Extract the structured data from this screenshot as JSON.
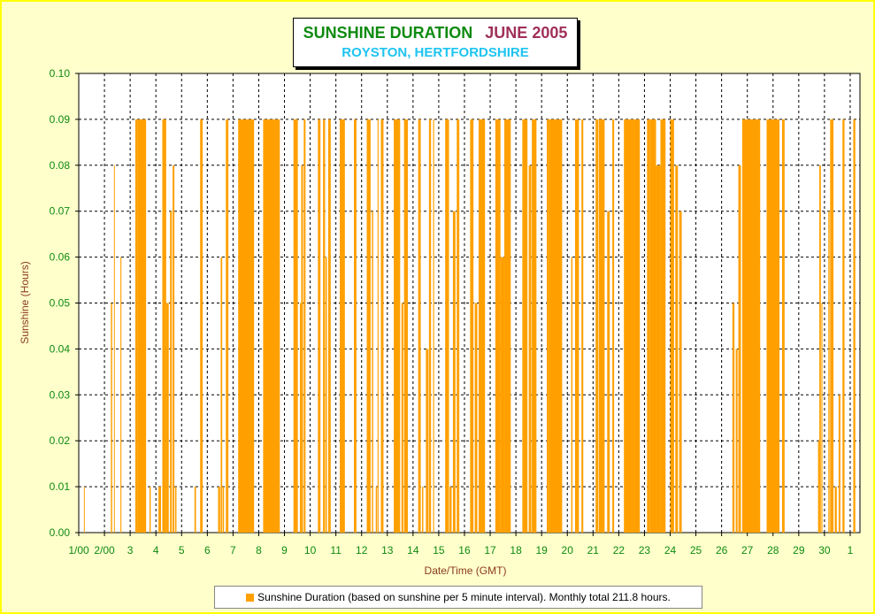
{
  "chart_data": {
    "type": "bar",
    "title": "SUNSHINE DURATION",
    "title_month": "JUNE 2005",
    "subtitle": "ROYSTON, HERTFORDSHIRE",
    "xlabel": "Date/Time (GMT)",
    "ylabel": "Sunshine (Hours)",
    "ylim": [
      0,
      0.1
    ],
    "y_ticks": [
      "0.00",
      "0.01",
      "0.02",
      "0.03",
      "0.04",
      "0.05",
      "0.06",
      "0.07",
      "0.08",
      "0.09",
      "0.10"
    ],
    "x_ticks": [
      "1/00",
      "2/00",
      "3",
      "4",
      "5",
      "6",
      "7",
      "8",
      "9",
      "10",
      "11",
      "12",
      "13",
      "14",
      "15",
      "16",
      "17",
      "18",
      "19",
      "20",
      "21",
      "22",
      "23",
      "24",
      "25",
      "26",
      "27",
      "28",
      "29",
      "30",
      "1"
    ],
    "grid": true,
    "bar_color": "#ffa000",
    "plot_background": "#ffffff",
    "frame_background": "#ffffcc",
    "legend_position": "bottom",
    "series": [
      {
        "name": "Sunshine Duration (based on sunshine per 5 minute interval). Monthly total 211.8 hours.",
        "segments_note": "",
        "segments": [
          {
            "start": 1.2,
            "end": 1.22,
            "value": 0.01
          },
          {
            "start": 2.25,
            "end": 2.3,
            "value": 0.05
          },
          {
            "start": 2.37,
            "end": 2.4,
            "value": 0.08
          },
          {
            "start": 2.62,
            "end": 2.66,
            "value": 0.06
          },
          {
            "start": 3.2,
            "end": 3.3,
            "value": 0.09
          },
          {
            "start": 3.3,
            "end": 3.62,
            "value": 0.09
          },
          {
            "start": 3.75,
            "end": 3.8,
            "value": 0.01
          },
          {
            "start": 4.1,
            "end": 4.2,
            "value": 0.01
          },
          {
            "start": 4.25,
            "end": 4.4,
            "value": 0.09
          },
          {
            "start": 4.4,
            "end": 4.5,
            "value": 0.05
          },
          {
            "start": 4.55,
            "end": 4.62,
            "value": 0.07
          },
          {
            "start": 4.65,
            "end": 4.72,
            "value": 0.08
          },
          {
            "start": 4.75,
            "end": 4.8,
            "value": 0.01
          },
          {
            "start": 5.5,
            "end": 5.56,
            "value": 0.01
          },
          {
            "start": 5.72,
            "end": 5.82,
            "value": 0.09
          },
          {
            "start": 6.42,
            "end": 6.5,
            "value": 0.01
          },
          {
            "start": 6.52,
            "end": 6.58,
            "value": 0.06
          },
          {
            "start": 6.6,
            "end": 6.65,
            "value": 0.01
          },
          {
            "start": 6.72,
            "end": 6.82,
            "value": 0.09
          },
          {
            "start": 7.2,
            "end": 7.82,
            "value": 0.09
          },
          {
            "start": 8.17,
            "end": 8.82,
            "value": 0.09
          },
          {
            "start": 9.35,
            "end": 9.52,
            "value": 0.09
          },
          {
            "start": 9.6,
            "end": 9.65,
            "value": 0.05
          },
          {
            "start": 9.65,
            "end": 9.72,
            "value": 0.08
          },
          {
            "start": 9.75,
            "end": 9.82,
            "value": 0.09
          },
          {
            "start": 10.3,
            "end": 10.4,
            "value": 0.09
          },
          {
            "start": 10.5,
            "end": 10.58,
            "value": 0.09
          },
          {
            "start": 10.6,
            "end": 10.65,
            "value": 0.06
          },
          {
            "start": 10.7,
            "end": 10.8,
            "value": 0.09
          },
          {
            "start": 11.15,
            "end": 11.35,
            "value": 0.09
          },
          {
            "start": 11.7,
            "end": 11.8,
            "value": 0.09
          },
          {
            "start": 12.2,
            "end": 12.35,
            "value": 0.09
          },
          {
            "start": 12.4,
            "end": 12.45,
            "value": 0.07
          },
          {
            "start": 12.55,
            "end": 12.6,
            "value": 0.01
          },
          {
            "start": 12.62,
            "end": 12.66,
            "value": 0.09
          },
          {
            "start": 12.75,
            "end": 12.85,
            "value": 0.09
          },
          {
            "start": 13.25,
            "end": 13.5,
            "value": 0.09
          },
          {
            "start": 13.55,
            "end": 13.62,
            "value": 0.05
          },
          {
            "start": 13.65,
            "end": 13.8,
            "value": 0.09
          },
          {
            "start": 14.2,
            "end": 14.3,
            "value": 0.09
          },
          {
            "start": 14.35,
            "end": 14.4,
            "value": 0.01
          },
          {
            "start": 14.5,
            "end": 14.6,
            "value": 0.04
          },
          {
            "start": 14.62,
            "end": 14.7,
            "value": 0.09
          },
          {
            "start": 14.78,
            "end": 14.82,
            "value": 0.09
          },
          {
            "start": 15.25,
            "end": 15.4,
            "value": 0.09
          },
          {
            "start": 15.42,
            "end": 15.5,
            "value": 0.01
          },
          {
            "start": 15.55,
            "end": 15.65,
            "value": 0.07
          },
          {
            "start": 15.7,
            "end": 15.8,
            "value": 0.09
          },
          {
            "start": 16.22,
            "end": 16.35,
            "value": 0.09
          },
          {
            "start": 16.4,
            "end": 16.5,
            "value": 0.05
          },
          {
            "start": 16.55,
            "end": 16.8,
            "value": 0.09
          },
          {
            "start": 17.2,
            "end": 17.4,
            "value": 0.09
          },
          {
            "start": 17.4,
            "end": 17.55,
            "value": 0.06
          },
          {
            "start": 17.55,
            "end": 17.8,
            "value": 0.09
          },
          {
            "start": 18.25,
            "end": 18.45,
            "value": 0.09
          },
          {
            "start": 18.5,
            "end": 18.6,
            "value": 0.08
          },
          {
            "start": 18.62,
            "end": 18.8,
            "value": 0.09
          },
          {
            "start": 19.2,
            "end": 19.3,
            "value": 0.09
          },
          {
            "start": 19.3,
            "end": 19.8,
            "value": 0.09
          },
          {
            "start": 20.15,
            "end": 20.2,
            "value": 0.06
          },
          {
            "start": 20.3,
            "end": 20.45,
            "value": 0.09
          },
          {
            "start": 20.55,
            "end": 20.62,
            "value": 0.09
          },
          {
            "start": 21.1,
            "end": 21.2,
            "value": 0.09
          },
          {
            "start": 21.22,
            "end": 21.45,
            "value": 0.09
          },
          {
            "start": 21.55,
            "end": 21.65,
            "value": 0.07
          },
          {
            "start": 21.75,
            "end": 21.82,
            "value": 0.09
          },
          {
            "start": 22.2,
            "end": 22.82,
            "value": 0.09
          },
          {
            "start": 23.1,
            "end": 23.2,
            "value": 0.09
          },
          {
            "start": 23.2,
            "end": 23.45,
            "value": 0.09
          },
          {
            "start": 23.45,
            "end": 23.62,
            "value": 0.08
          },
          {
            "start": 23.62,
            "end": 23.82,
            "value": 0.09
          },
          {
            "start": 24.0,
            "end": 24.15,
            "value": 0.09
          },
          {
            "start": 24.2,
            "end": 24.3,
            "value": 0.08
          },
          {
            "start": 24.35,
            "end": 24.45,
            "value": 0.07
          },
          {
            "start": 26.42,
            "end": 26.5,
            "value": 0.05
          },
          {
            "start": 26.55,
            "end": 26.62,
            "value": 0.04
          },
          {
            "start": 26.65,
            "end": 26.75,
            "value": 0.08
          },
          {
            "start": 26.8,
            "end": 27.5,
            "value": 0.09
          },
          {
            "start": 27.75,
            "end": 28.25,
            "value": 0.09
          },
          {
            "start": 28.35,
            "end": 28.45,
            "value": 0.09
          },
          {
            "start": 29.75,
            "end": 29.8,
            "value": 0.02
          },
          {
            "start": 29.8,
            "end": 29.86,
            "value": 0.08
          },
          {
            "start": 29.88,
            "end": 29.92,
            "value": 0.05
          },
          {
            "start": 30.15,
            "end": 30.2,
            "value": 0.07
          },
          {
            "start": 30.22,
            "end": 30.35,
            "value": 0.09
          },
          {
            "start": 30.4,
            "end": 30.48,
            "value": 0.01
          },
          {
            "start": 30.55,
            "end": 30.62,
            "value": 0.03
          },
          {
            "start": 30.7,
            "end": 30.78,
            "value": 0.09
          },
          {
            "start": 31.12,
            "end": 31.2,
            "value": 0.09
          }
        ]
      }
    ]
  }
}
